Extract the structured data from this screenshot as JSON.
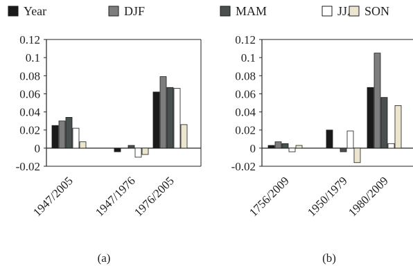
{
  "legend": [
    {
      "name": "Year",
      "color": "#1a1a1a"
    },
    {
      "name": "DJF",
      "color": "#7d7d7d"
    },
    {
      "name": "MAM",
      "color": "#4a4f50"
    },
    {
      "name": "JJA",
      "color": "#ffffff"
    },
    {
      "name": "SON",
      "color": "#ece5cf"
    }
  ],
  "chart_data": [
    {
      "type": "bar",
      "caption": "(a)",
      "categories": [
        "1947/2005",
        "1947/1976",
        "1976/2005"
      ],
      "series": [
        {
          "name": "Year",
          "values": [
            0.025,
            -0.004,
            0.062
          ]
        },
        {
          "name": "DJF",
          "values": [
            0.03,
            0.0,
            0.079
          ]
        },
        {
          "name": "MAM",
          "values": [
            0.034,
            0.003,
            0.067
          ]
        },
        {
          "name": "JJA",
          "values": [
            0.022,
            -0.01,
            0.066
          ]
        },
        {
          "name": "SON",
          "values": [
            0.007,
            -0.007,
            0.026
          ]
        }
      ],
      "ylim": [
        -0.02,
        0.12
      ],
      "yticks": [
        "-0.02",
        "0",
        "0.02",
        "0.04",
        "0.06",
        "0.08",
        "0.1",
        "0.12"
      ],
      "grid": false
    },
    {
      "type": "bar",
      "caption": "(b)",
      "categories": [
        "1756/2009",
        "1950/1979",
        "1980/2009"
      ],
      "series": [
        {
          "name": "Year",
          "values": [
            0.003,
            0.02,
            0.067
          ]
        },
        {
          "name": "DJF",
          "values": [
            0.007,
            0.0,
            0.105
          ]
        },
        {
          "name": "MAM",
          "values": [
            0.005,
            -0.004,
            0.056
          ]
        },
        {
          "name": "JJA",
          "values": [
            -0.004,
            0.019,
            0.005
          ]
        },
        {
          "name": "SON",
          "values": [
            0.003,
            -0.016,
            0.047
          ]
        }
      ],
      "ylim": [
        -0.02,
        0.12
      ],
      "yticks": [
        "-0.02",
        "0",
        "0.02",
        "0.04",
        "0.06",
        "0.08",
        "0.1",
        "0.12"
      ],
      "grid": false
    }
  ]
}
